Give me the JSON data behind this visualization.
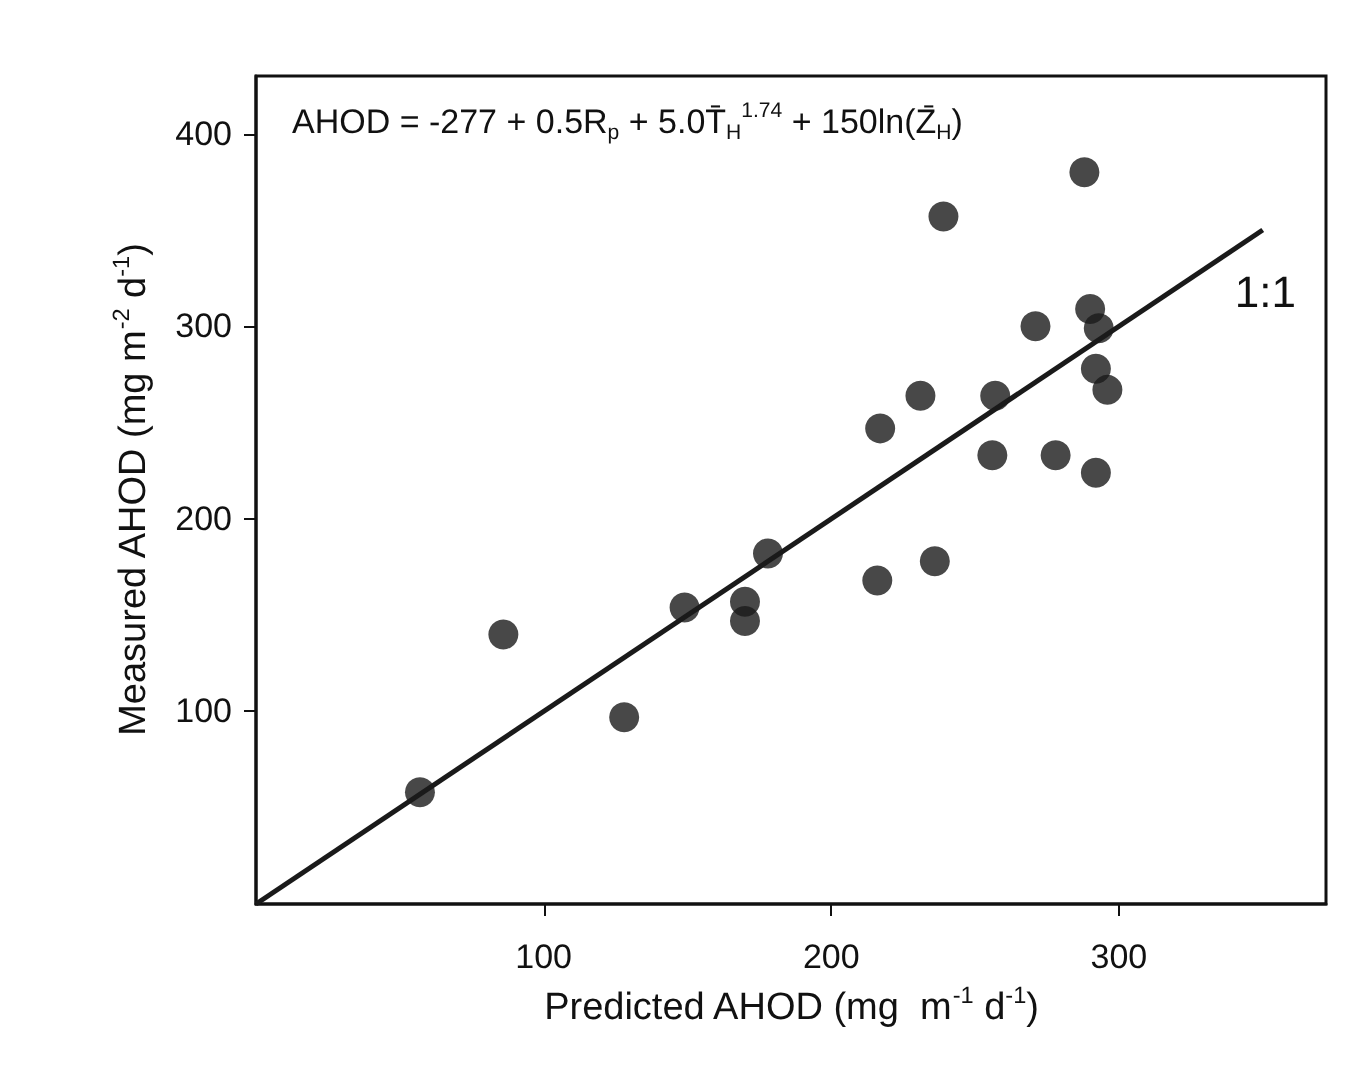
{
  "chart_data": {
    "type": "scatter",
    "xlabel": "Predicted AHOD (mg  m$^{-1}$ d$^{-1}$)",
    "ylabel": "Measured AHOD (mg m$^{-2}$ d$^{-1}$)",
    "annotations": [
      "AHOD = -277 + 0.5R$_{p}$ + 5.0T̄$_{H}$$^{1.74}$ + 150ln(Z̄$_{H}$)",
      {
        "text": "1:1",
        "x": 350,
        "y": 350
      }
    ],
    "series": [
      {
        "color": "#1a1a1a",
        "marker": "circle",
        "x": [
          57,
          86,
          128,
          149,
          170,
          170,
          178,
          216,
          236,
          256,
          278,
          292,
          288,
          239,
          290,
          271,
          293,
          292,
          296,
          231,
          257,
          217
        ],
        "values": [
          58,
          140,
          97,
          154,
          157,
          147,
          182,
          168,
          178,
          233,
          233,
          224,
          380,
          357,
          309,
          300,
          299,
          278,
          267,
          264,
          264,
          247
        ]
      },
      {
        "type": "line",
        "color": "#1a1a1a",
        "x": [
          0,
          350
        ],
        "values": [
          0,
          350
        ]
      }
    ],
    "xlim": [
      0,
      372
    ],
    "xticks": [
      100,
      200,
      300
    ],
    "ylim": [
      0,
      430
    ],
    "yticks": [
      100,
      200,
      300,
      400
    ],
    "grid": false
  }
}
